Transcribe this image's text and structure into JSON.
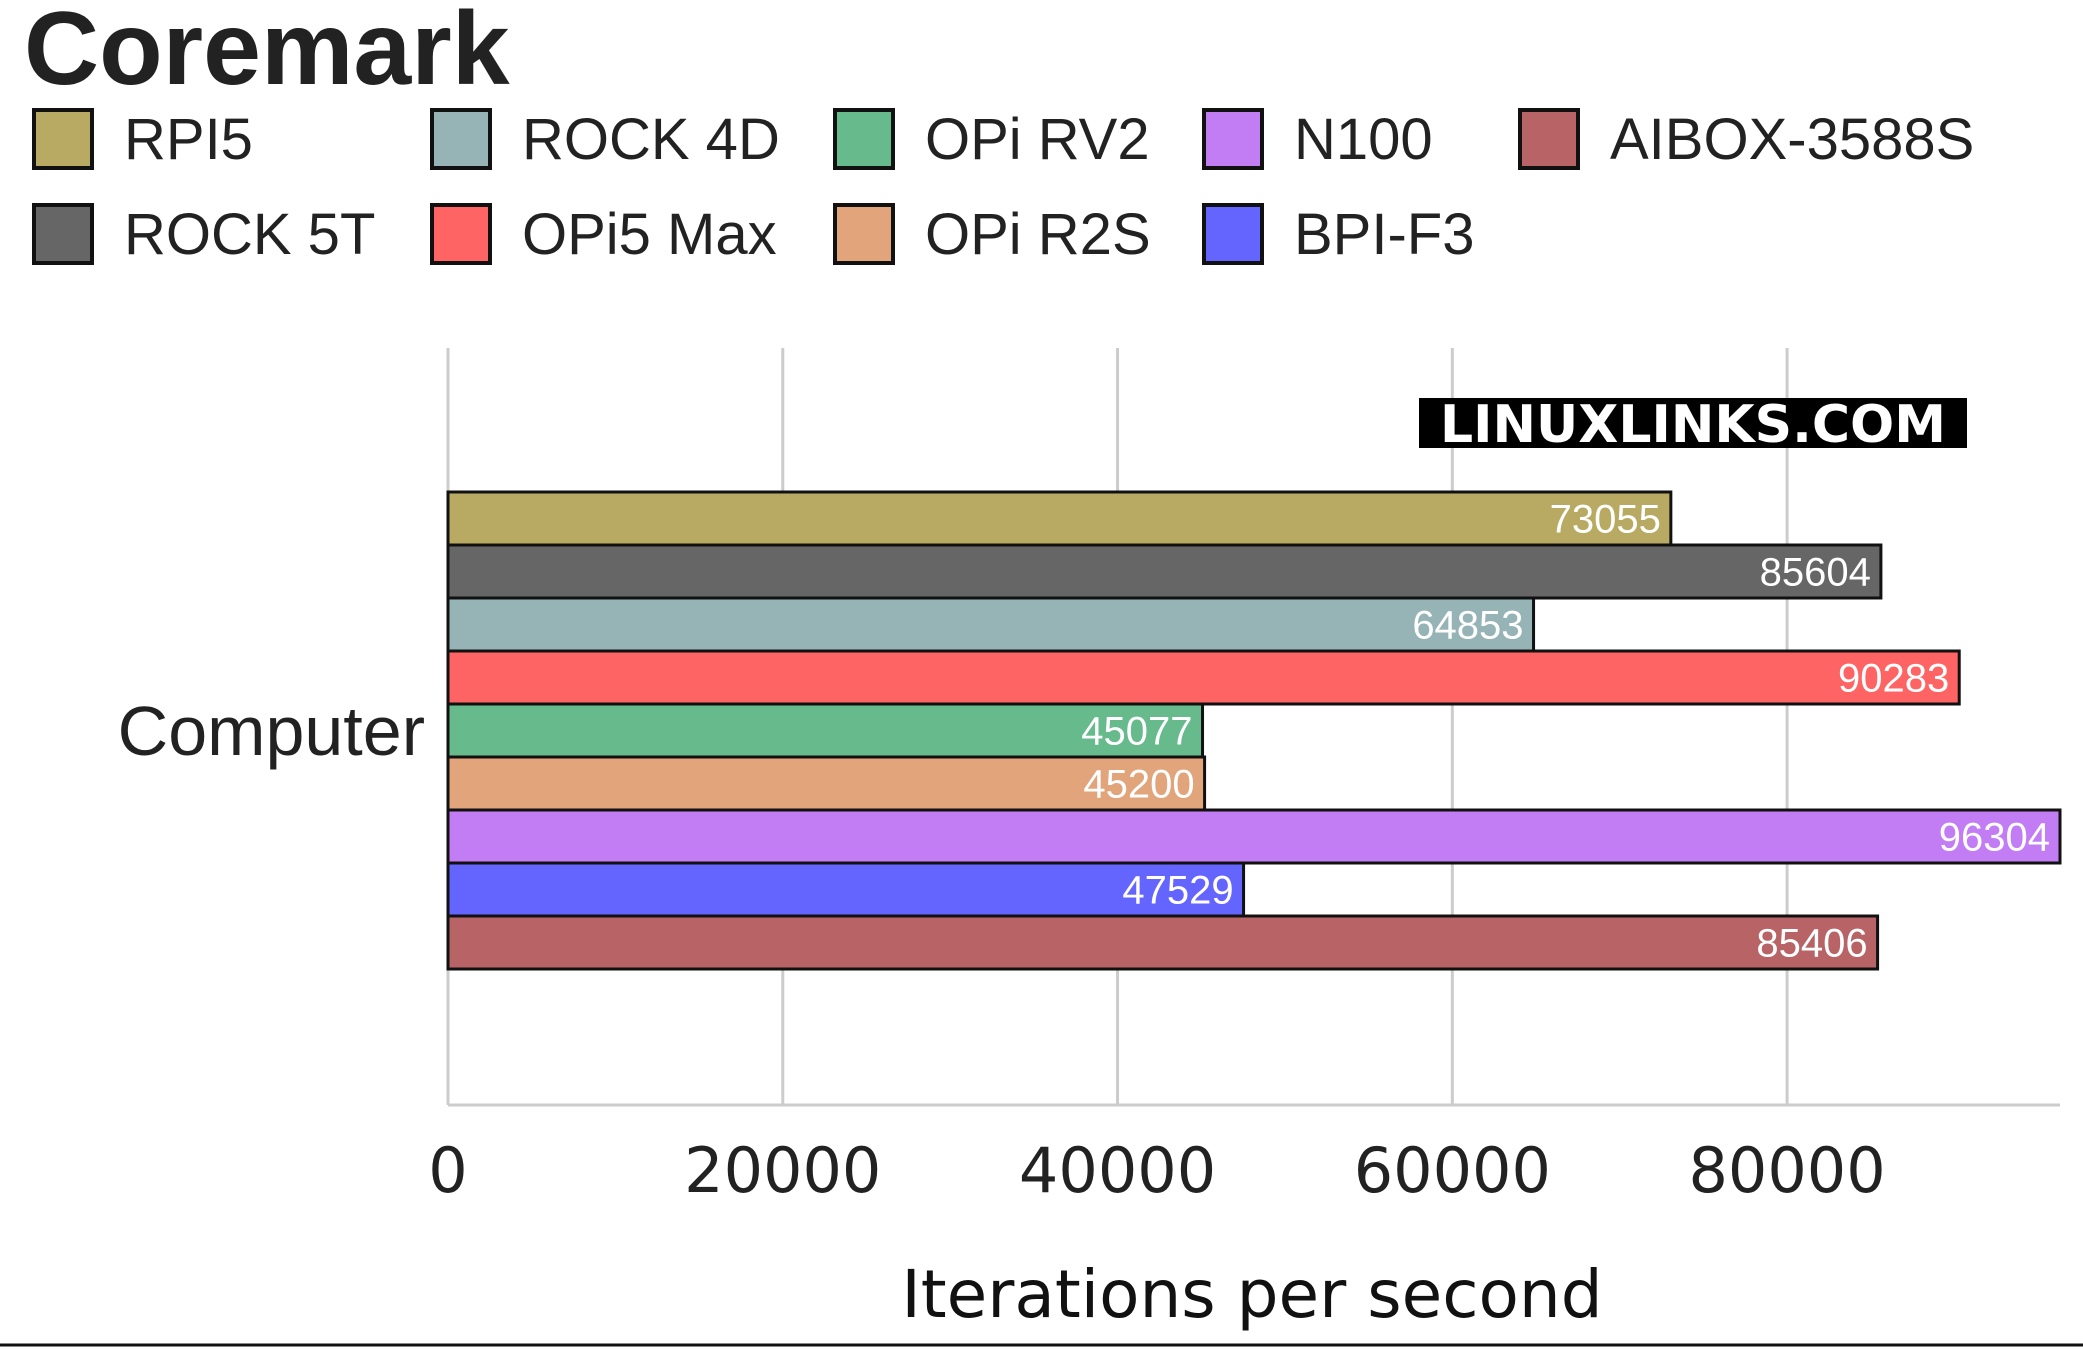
{
  "chart_data": {
    "type": "bar",
    "orientation": "horizontal",
    "title": "Coremark",
    "xlabel": "Iterations per second",
    "categories": [
      "Computer"
    ],
    "xlim": [
      0,
      96304
    ],
    "xticks": [
      0,
      20000,
      40000,
      60000,
      80000
    ],
    "grid": true,
    "legend_position": "top",
    "series": [
      {
        "name": "RPI5",
        "values": [
          73055
        ],
        "color": "#b8aa62"
      },
      {
        "name": "ROCK 5T",
        "values": [
          85604
        ],
        "color": "#666666"
      },
      {
        "name": "ROCK 4D",
        "values": [
          64853
        ],
        "color": "#96b3b6"
      },
      {
        "name": "OPi5 Max",
        "values": [
          90283
        ],
        "color": "#ff6464"
      },
      {
        "name": "OPi RV2",
        "values": [
          45077
        ],
        "color": "#66ba8c"
      },
      {
        "name": "OPi R2S",
        "values": [
          45200
        ],
        "color": "#e2a47a"
      },
      {
        "name": "N100",
        "values": [
          96304
        ],
        "color": "#c27cf4"
      },
      {
        "name": "BPI-F3",
        "values": [
          47529
        ],
        "color": "#6464fe"
      },
      {
        "name": "AIBOX-3588S",
        "values": [
          85406
        ],
        "color": "#b86466"
      }
    ],
    "legend_order": [
      "RPI5",
      "ROCK 4D",
      "OPi RV2",
      "N100",
      "AIBOX-3588S",
      "ROCK 5T",
      "OPi5 Max",
      "OPi R2S",
      "BPI-F3"
    ]
  },
  "watermark": "LINUXLINKS.COM"
}
